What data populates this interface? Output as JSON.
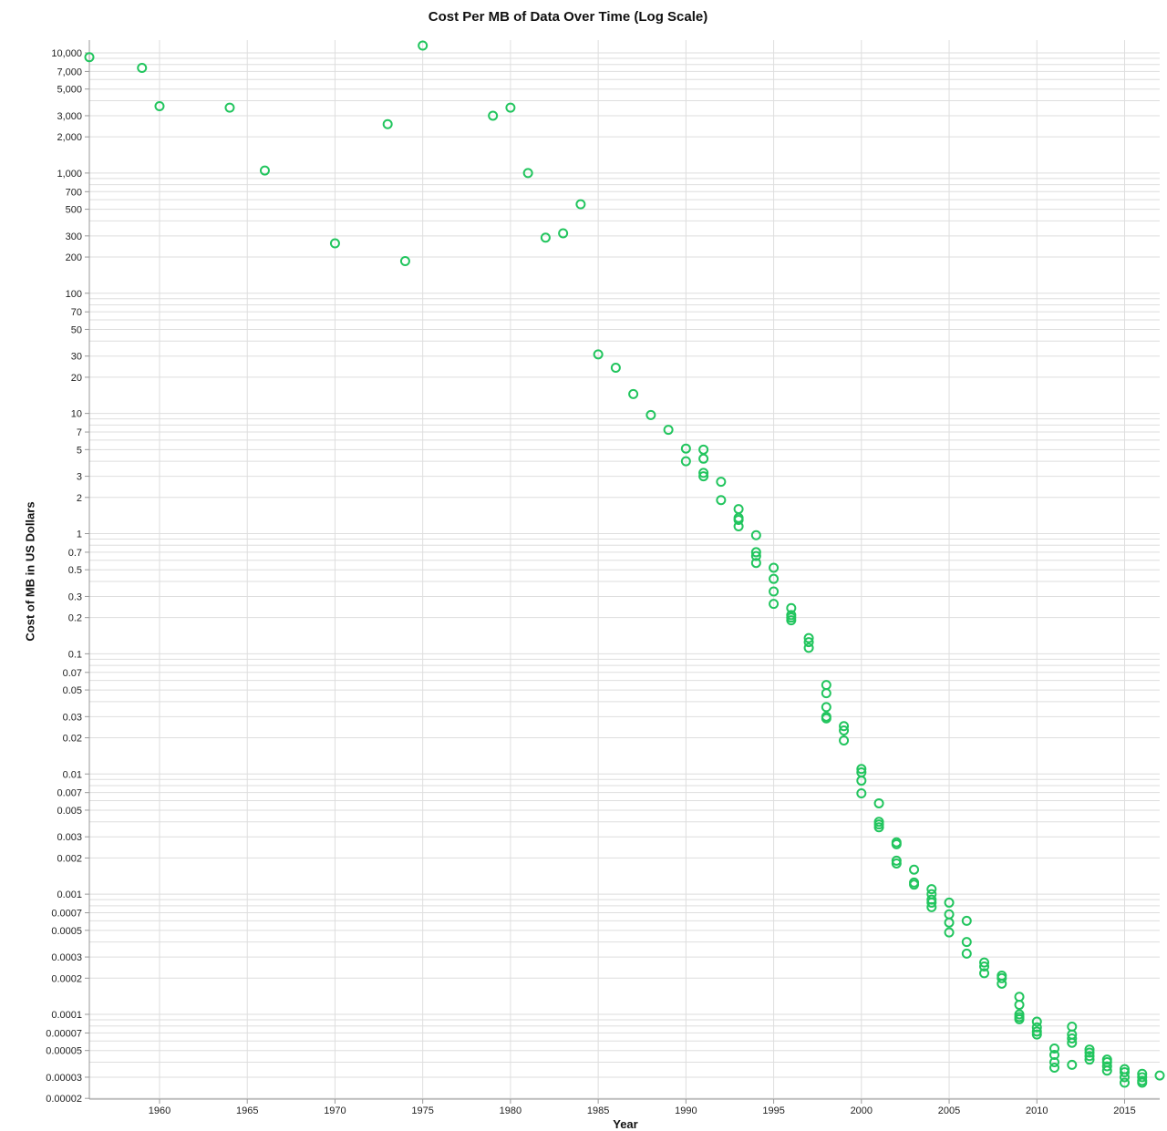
{
  "chart_data": {
    "type": "scatter",
    "title": "Cost Per MB of Data Over Time (Log Scale)",
    "xlabel": "Year",
    "ylabel": "Cost of MB in US Dollars",
    "xlim": [
      1956,
      2017
    ],
    "ylim": [
      2e-05,
      12000
    ],
    "y_scale": "log",
    "grid": true,
    "marker": "open-circle",
    "color": "#22c55e",
    "x_ticks": [
      "1960",
      "1965",
      "1970",
      "1975",
      "1980",
      "1985",
      "1990",
      "1995",
      "2000",
      "2005",
      "2010",
      "2015"
    ],
    "y_tick_labels": [
      "10,000",
      "7,000",
      "5,000",
      "3,000",
      "2,000",
      "1,000",
      "700",
      "500",
      "300",
      "200",
      "100",
      "70",
      "50",
      "30",
      "20",
      "10",
      "7",
      "5",
      "3",
      "2",
      "1",
      "0.7",
      "0.5",
      "0.3",
      "0.2",
      "0.1",
      "0.07",
      "0.05",
      "0.03",
      "0.02",
      "0.01",
      "0.007",
      "0.005",
      "0.003",
      "0.002",
      "0.001",
      "0.0007",
      "0.0005",
      "0.0003",
      "0.0002",
      "0.0001",
      "0.00007",
      "0.00005",
      "0.00003",
      "0.00002"
    ],
    "points": [
      [
        1956,
        9200
      ],
      [
        1959,
        7500
      ],
      [
        1960,
        3600
      ],
      [
        1964,
        3500
      ],
      [
        1966,
        1050
      ],
      [
        1970,
        260
      ],
      [
        1973,
        2550
      ],
      [
        1974,
        185
      ],
      [
        1975,
        11500
      ],
      [
        1979,
        3000
      ],
      [
        1980,
        3500
      ],
      [
        1981,
        1000
      ],
      [
        1982,
        290
      ],
      [
        1983,
        315
      ],
      [
        1984,
        550
      ],
      [
        1985,
        31
      ],
      [
        1986,
        24
      ],
      [
        1987,
        14.5
      ],
      [
        1988,
        9.7
      ],
      [
        1989,
        7.3
      ],
      [
        1990,
        5.1
      ],
      [
        1990,
        4
      ],
      [
        1991,
        5
      ],
      [
        1991,
        4.2
      ],
      [
        1991,
        3.2
      ],
      [
        1991,
        3
      ],
      [
        1992,
        2.7
      ],
      [
        1992,
        1.9
      ],
      [
        1993,
        1.6
      ],
      [
        1993,
        1.35
      ],
      [
        1993,
        1.3
      ],
      [
        1993,
        1.15
      ],
      [
        1994,
        0.97
      ],
      [
        1994,
        0.7
      ],
      [
        1994,
        0.65
      ],
      [
        1994,
        0.57
      ],
      [
        1995,
        0.52
      ],
      [
        1995,
        0.42
      ],
      [
        1995,
        0.33
      ],
      [
        1995,
        0.26
      ],
      [
        1996,
        0.24
      ],
      [
        1996,
        0.21
      ],
      [
        1996,
        0.2
      ],
      [
        1996,
        0.19
      ],
      [
        1997,
        0.135
      ],
      [
        1997,
        0.125
      ],
      [
        1997,
        0.112
      ],
      [
        1998,
        0.055
      ],
      [
        1998,
        0.047
      ],
      [
        1998,
        0.036
      ],
      [
        1998,
        0.03
      ],
      [
        1998,
        0.029
      ],
      [
        1999,
        0.025
      ],
      [
        1999,
        0.023
      ],
      [
        1999,
        0.019
      ],
      [
        2000,
        0.011
      ],
      [
        2000,
        0.0103
      ],
      [
        2000,
        0.0088
      ],
      [
        2000,
        0.0069
      ],
      [
        2001,
        0.0057
      ],
      [
        2001,
        0.004
      ],
      [
        2001,
        0.0038
      ],
      [
        2001,
        0.0036
      ],
      [
        2002,
        0.0027
      ],
      [
        2002,
        0.0026
      ],
      [
        2002,
        0.0019
      ],
      [
        2002,
        0.0018
      ],
      [
        2003,
        0.0016
      ],
      [
        2003,
        0.00125
      ],
      [
        2003,
        0.0012
      ],
      [
        2004,
        0.0011
      ],
      [
        2004,
        0.001
      ],
      [
        2004,
        0.0009
      ],
      [
        2004,
        0.00085
      ],
      [
        2004,
        0.00078
      ],
      [
        2005,
        0.00085
      ],
      [
        2005,
        0.00068
      ],
      [
        2005,
        0.00058
      ],
      [
        2005,
        0.00048
      ],
      [
        2006,
        0.0006
      ],
      [
        2006,
        0.0004
      ],
      [
        2006,
        0.00032
      ],
      [
        2007,
        0.00027
      ],
      [
        2007,
        0.00025
      ],
      [
        2007,
        0.00022
      ],
      [
        2008,
        0.00021
      ],
      [
        2008,
        0.0002
      ],
      [
        2008,
        0.00018
      ],
      [
        2009,
        0.00014
      ],
      [
        2009,
        0.00012
      ],
      [
        2009,
        0.0001
      ],
      [
        2009,
        9.5e-05
      ],
      [
        2009,
        9.1e-05
      ],
      [
        2010,
        8.7e-05
      ],
      [
        2010,
        7.8e-05
      ],
      [
        2010,
        7.2e-05
      ],
      [
        2010,
        6.8e-05
      ],
      [
        2011,
        5.2e-05
      ],
      [
        2011,
        4.6e-05
      ],
      [
        2011,
        4e-05
      ],
      [
        2011,
        3.6e-05
      ],
      [
        2012,
        7.9e-05
      ],
      [
        2012,
        6.8e-05
      ],
      [
        2012,
        6.3e-05
      ],
      [
        2012,
        5.8e-05
      ],
      [
        2012,
        3.8e-05
      ],
      [
        2013,
        5.1e-05
      ],
      [
        2013,
        4.8e-05
      ],
      [
        2013,
        4.5e-05
      ],
      [
        2013,
        4.2e-05
      ],
      [
        2014,
        4.2e-05
      ],
      [
        2014,
        4e-05
      ],
      [
        2014,
        3.7e-05
      ],
      [
        2014,
        3.4e-05
      ],
      [
        2015,
        3.5e-05
      ],
      [
        2015,
        3.3e-05
      ],
      [
        2015,
        3e-05
      ],
      [
        2015,
        2.7e-05
      ],
      [
        2016,
        3.2e-05
      ],
      [
        2016,
        3e-05
      ],
      [
        2016,
        2.8e-05
      ],
      [
        2016,
        2.7e-05
      ],
      [
        2017,
        3.1e-05
      ]
    ]
  }
}
